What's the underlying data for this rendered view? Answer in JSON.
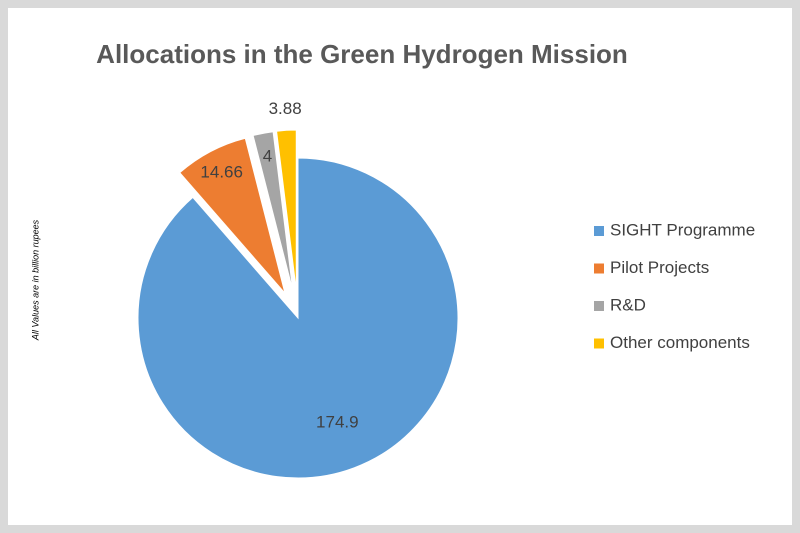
{
  "chart_data": {
    "type": "pie",
    "title": "Allocations in the Green Hydrogen Mission",
    "note": "All Values are in billion rupees",
    "categories": [
      "SIGHT Programme",
      "Pilot Projects",
      "R&D",
      "Other components"
    ],
    "values": [
      174.9,
      14.66,
      4,
      3.88
    ],
    "colors": [
      "#5b9bd5",
      "#ed7d31",
      "#a5a5a5",
      "#ffc000"
    ],
    "legend": "right"
  }
}
